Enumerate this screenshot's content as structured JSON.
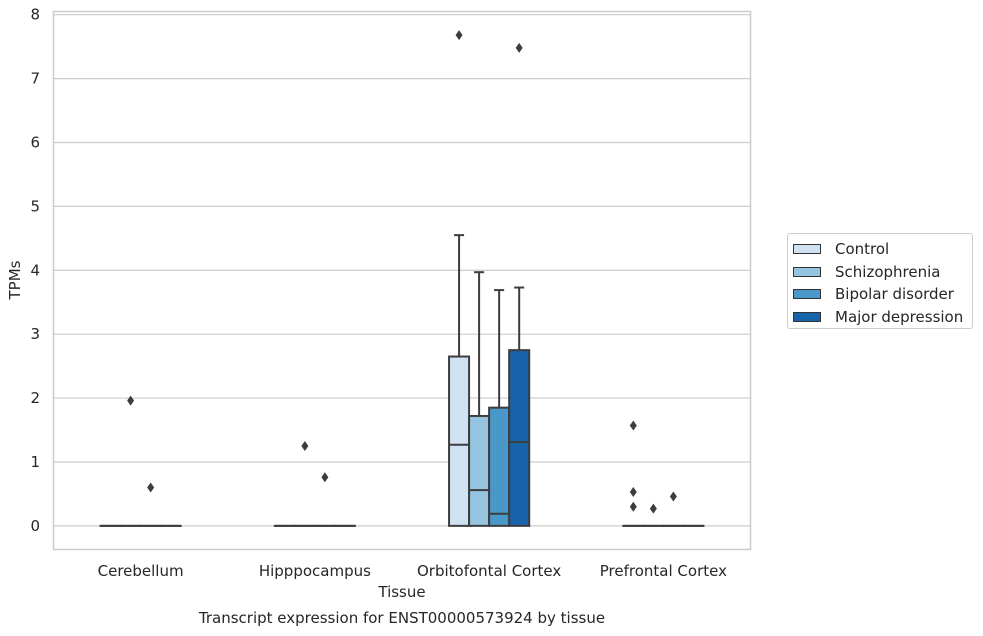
{
  "chart_data": {
    "type": "box",
    "title": "Transcript expression for ENST00000573924 by tissue",
    "xlabel": "Tissue",
    "ylabel": "TPMs",
    "ylim": [
      -0.37,
      8.05
    ],
    "yticks": [
      0,
      1,
      2,
      3,
      4,
      5,
      6,
      7,
      8
    ],
    "grid": "horizontal",
    "legend_position": "right",
    "categories": [
      "Cerebellum",
      "Hipppocampus",
      "Orbitofontal Cortex",
      "Prefrontal Cortex"
    ],
    "series": [
      {
        "name": "Control",
        "color": "#d0e1f2",
        "boxes": [
          {
            "min": 0,
            "q1": 0,
            "median": 0,
            "q3": 0,
            "max": 0,
            "outliers": []
          },
          {
            "min": 0,
            "q1": 0,
            "median": 0,
            "q3": 0,
            "max": 0,
            "outliers": []
          },
          {
            "min": 0,
            "q1": 0,
            "median": 1.27,
            "q3": 2.65,
            "max": 4.55,
            "outliers": [
              7.68
            ]
          },
          {
            "min": 0,
            "q1": 0,
            "median": 0,
            "q3": 0,
            "max": 0,
            "outliers": [
              1.57,
              0.53,
              0.3
            ]
          }
        ]
      },
      {
        "name": "Schizophrenia",
        "color": "#94c4df",
        "boxes": [
          {
            "min": 0,
            "q1": 0,
            "median": 0,
            "q3": 0,
            "max": 0,
            "outliers": [
              1.96
            ]
          },
          {
            "min": 0,
            "q1": 0,
            "median": 0,
            "q3": 0,
            "max": 0,
            "outliers": [
              1.25
            ]
          },
          {
            "min": 0,
            "q1": 0,
            "median": 0.56,
            "q3": 1.72,
            "max": 3.97,
            "outliers": []
          },
          {
            "min": 0,
            "q1": 0,
            "median": 0,
            "q3": 0,
            "max": 0,
            "outliers": [
              0.27
            ]
          }
        ]
      },
      {
        "name": "Bipolar disorder",
        "color": "#4a98c9",
        "boxes": [
          {
            "min": 0,
            "q1": 0,
            "median": 0,
            "q3": 0,
            "max": 0,
            "outliers": [
              0.6
            ]
          },
          {
            "min": 0,
            "q1": 0,
            "median": 0,
            "q3": 0,
            "max": 0,
            "outliers": [
              0.76
            ]
          },
          {
            "min": 0,
            "q1": 0,
            "median": 0.19,
            "q3": 1.85,
            "max": 3.69,
            "outliers": []
          },
          {
            "min": 0,
            "q1": 0,
            "median": 0,
            "q3": 0,
            "max": 0,
            "outliers": [
              0.46
            ]
          }
        ]
      },
      {
        "name": "Major depression",
        "color": "#1764ab",
        "boxes": [
          {
            "min": 0,
            "q1": 0,
            "median": 0,
            "q3": 0,
            "max": 0,
            "outliers": []
          },
          {
            "min": 0,
            "q1": 0,
            "median": 0,
            "q3": 0,
            "max": 0,
            "outliers": []
          },
          {
            "min": 0,
            "q1": 0,
            "median": 1.31,
            "q3": 2.75,
            "max": 3.73,
            "outliers": [
              7.48
            ]
          },
          {
            "min": 0,
            "q1": 0,
            "median": 0,
            "q3": 0,
            "max": 0,
            "outliers": []
          }
        ]
      }
    ]
  }
}
